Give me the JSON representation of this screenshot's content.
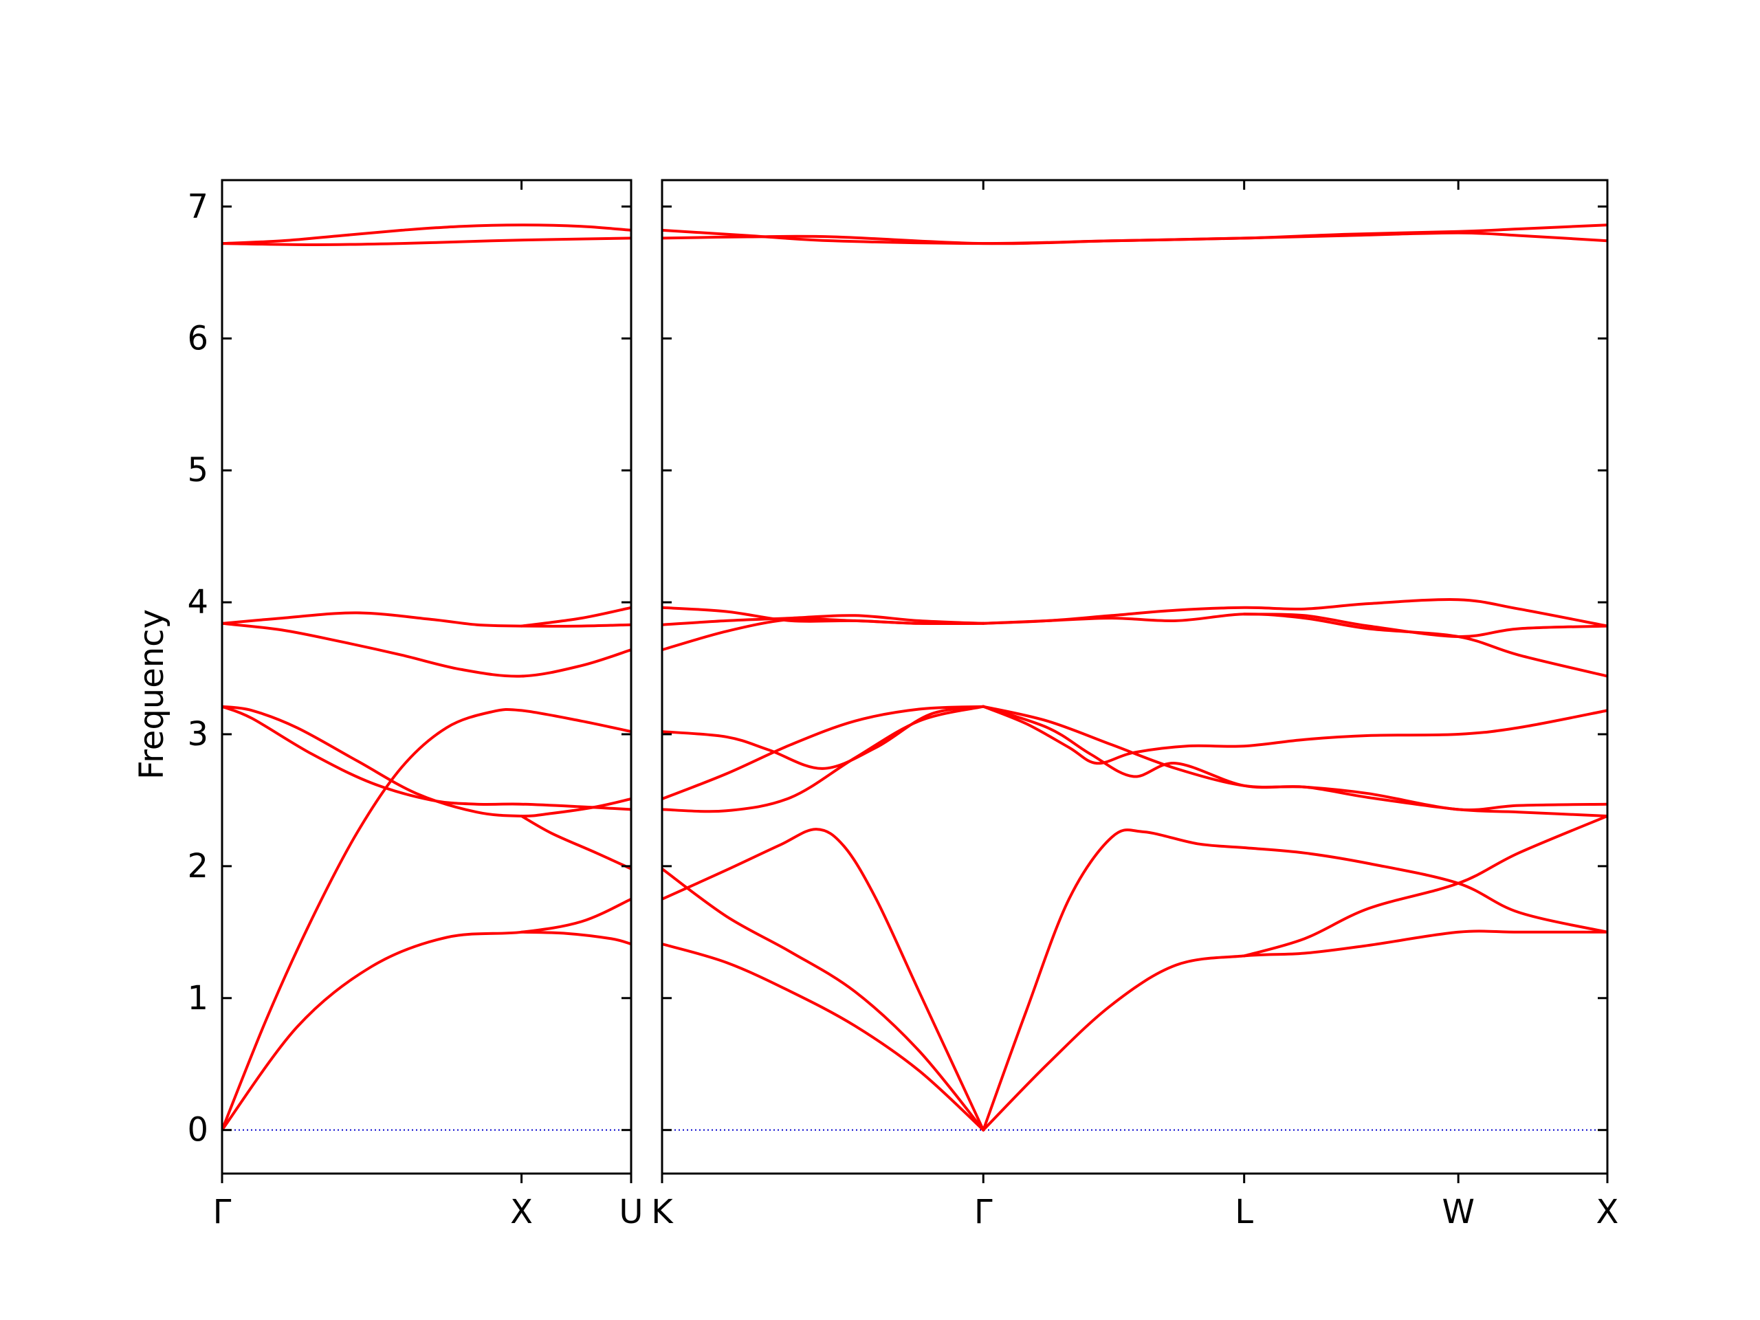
{
  "chart_data": {
    "type": "line",
    "title": "",
    "ylabel": "Frequency",
    "ylim": [
      -0.33,
      7.2
    ],
    "yticks": [
      0,
      1,
      2,
      3,
      4,
      5,
      6,
      7
    ],
    "zero_line": {
      "style": "dotted",
      "color": "#0000cc"
    },
    "band_color": "#ff0000",
    "segments": [
      {
        "name": "Γ-X-U",
        "xlim": [
          0,
          1.366
        ],
        "ticks": [
          {
            "x": 0,
            "label": "Γ"
          },
          {
            "x": 1.0,
            "label": "X"
          },
          {
            "x": 1.366,
            "label": "U"
          }
        ],
        "bands": [
          [
            [
              0,
              0
            ],
            [
              0.25,
              0.78
            ],
            [
              0.5,
              1.24
            ],
            [
              0.75,
              1.46
            ],
            [
              1.0,
              1.5
            ],
            [
              1.2,
              1.58
            ],
            [
              1.366,
              1.75
            ]
          ],
          [
            [
              0,
              0
            ],
            [
              0.15,
              0.85
            ],
            [
              0.3,
              1.6
            ],
            [
              0.45,
              2.25
            ],
            [
              0.6,
              2.75
            ],
            [
              0.75,
              3.05
            ],
            [
              0.9,
              3.17
            ],
            [
              1.0,
              3.18
            ],
            [
              1.2,
              3.1
            ],
            [
              1.366,
              3.02
            ]
          ],
          [
            [
              0,
              3.21
            ],
            [
              0.1,
              3.18
            ],
            [
              0.25,
              3.05
            ],
            [
              0.45,
              2.8
            ],
            [
              0.65,
              2.55
            ],
            [
              0.85,
              2.41
            ],
            [
              1.0,
              2.38
            ],
            [
              1.1,
              2.4
            ],
            [
              1.25,
              2.45
            ],
            [
              1.366,
              2.51
            ]
          ],
          [
            [
              0,
              3.21
            ],
            [
              0.1,
              3.12
            ],
            [
              0.3,
              2.85
            ],
            [
              0.5,
              2.63
            ],
            [
              0.7,
              2.5
            ],
            [
              0.85,
              2.47
            ],
            [
              1.0,
              2.47
            ],
            [
              1.2,
              2.45
            ],
            [
              1.366,
              2.43
            ]
          ],
          [
            [
              0,
              3.84
            ],
            [
              0.2,
              3.79
            ],
            [
              0.4,
              3.7
            ],
            [
              0.6,
              3.6
            ],
            [
              0.8,
              3.49
            ],
            [
              1.0,
              3.44
            ],
            [
              1.2,
              3.52
            ],
            [
              1.366,
              3.64
            ]
          ],
          [
            [
              0,
              3.84
            ],
            [
              0.2,
              3.88
            ],
            [
              0.45,
              3.92
            ],
            [
              0.7,
              3.87
            ],
            [
              0.85,
              3.83
            ],
            [
              1.0,
              3.82
            ],
            [
              1.2,
              3.82
            ],
            [
              1.366,
              3.83
            ]
          ],
          [
            [
              0,
              6.72
            ],
            [
              0.2,
              6.74
            ],
            [
              0.4,
              6.78
            ],
            [
              0.6,
              6.82
            ],
            [
              0.8,
              6.85
            ],
            [
              1.0,
              6.86
            ],
            [
              1.2,
              6.85
            ],
            [
              1.366,
              6.82
            ]
          ],
          [
            [
              0,
              6.72
            ],
            [
              0.3,
              6.71
            ],
            [
              0.6,
              6.72
            ],
            [
              0.9,
              6.74
            ],
            [
              1.1,
              6.75
            ],
            [
              1.366,
              6.76
            ]
          ],
          [
            [
              1.0,
              2.38
            ],
            [
              1.1,
              2.25
            ],
            [
              1.25,
              2.1
            ],
            [
              1.366,
              1.98
            ]
          ],
          [
            [
              1.0,
              1.5
            ],
            [
              1.15,
              1.49
            ],
            [
              1.3,
              1.45
            ],
            [
              1.366,
              1.41
            ]
          ],
          [
            [
              1.0,
              3.82
            ],
            [
              1.2,
              3.88
            ],
            [
              1.366,
              3.96
            ]
          ]
        ]
      },
      {
        "name": "K-Γ-L-W-X",
        "xlim": [
          0,
          4.414
        ],
        "ticks": [
          {
            "x": 0,
            "label": "K"
          },
          {
            "x": 1.5,
            "label": "Γ"
          },
          {
            "x": 2.718,
            "label": "L"
          },
          {
            "x": 3.718,
            "label": "W"
          },
          {
            "x": 4.414,
            "label": "X"
          }
        ],
        "bands": [
          [
            [
              0,
              1.41
            ],
            [
              0.3,
              1.27
            ],
            [
              0.6,
              1.05
            ],
            [
              0.9,
              0.79
            ],
            [
              1.2,
              0.45
            ],
            [
              1.5,
              0
            ]
          ],
          [
            [
              0,
              1.98
            ],
            [
              0.3,
              1.62
            ],
            [
              0.6,
              1.35
            ],
            [
              0.9,
              1.05
            ],
            [
              1.2,
              0.6
            ],
            [
              1.5,
              0
            ]
          ],
          [
            [
              0,
              1.75
            ],
            [
              0.3,
              1.97
            ],
            [
              0.55,
              2.16
            ],
            [
              0.72,
              2.28
            ],
            [
              0.85,
              2.15
            ],
            [
              1.0,
              1.75
            ],
            [
              1.2,
              1.05
            ],
            [
              1.5,
              0
            ]
          ],
          [
            [
              0,
              2.43
            ],
            [
              0.3,
              2.42
            ],
            [
              0.6,
              2.52
            ],
            [
              0.9,
              2.82
            ],
            [
              1.2,
              3.1
            ],
            [
              1.5,
              3.21
            ]
          ],
          [
            [
              0,
              2.51
            ],
            [
              0.3,
              2.7
            ],
            [
              0.6,
              2.92
            ],
            [
              0.9,
              3.1
            ],
            [
              1.2,
              3.19
            ],
            [
              1.5,
              3.21
            ]
          ],
          [
            [
              0,
              3.02
            ],
            [
              0.3,
              2.98
            ],
            [
              0.5,
              2.88
            ],
            [
              0.75,
              2.74
            ],
            [
              1.0,
              2.9
            ],
            [
              1.25,
              3.15
            ],
            [
              1.5,
              3.21
            ]
          ],
          [
            [
              0,
              3.64
            ],
            [
              0.3,
              3.78
            ],
            [
              0.6,
              3.87
            ],
            [
              0.9,
              3.86
            ],
            [
              1.2,
              3.84
            ],
            [
              1.5,
              3.84
            ]
          ],
          [
            [
              0,
              3.83
            ],
            [
              0.3,
              3.86
            ],
            [
              0.6,
              3.88
            ],
            [
              0.9,
              3.9
            ],
            [
              1.2,
              3.86
            ],
            [
              1.5,
              3.84
            ]
          ],
          [
            [
              0,
              3.96
            ],
            [
              0.3,
              3.93
            ],
            [
              0.6,
              3.86
            ],
            [
              0.9,
              3.86
            ],
            [
              1.2,
              3.84
            ],
            [
              1.5,
              3.84
            ]
          ],
          [
            [
              0,
              6.82
            ],
            [
              0.4,
              6.78
            ],
            [
              0.8,
              6.74
            ],
            [
              1.5,
              6.72
            ],
            [
              2.1,
              6.74
            ],
            [
              2.718,
              6.76
            ],
            [
              3.2,
              6.78
            ],
            [
              3.718,
              6.8
            ],
            [
              4.0,
              6.78
            ],
            [
              4.414,
              6.74
            ]
          ],
          [
            [
              0,
              6.76
            ],
            [
              0.4,
              6.77
            ],
            [
              0.8,
              6.77
            ],
            [
              1.5,
              6.72
            ],
            [
              2.1,
              6.74
            ],
            [
              2.718,
              6.76
            ],
            [
              3.2,
              6.79
            ],
            [
              3.718,
              6.81
            ],
            [
              4.0,
              6.83
            ],
            [
              4.414,
              6.86
            ]
          ],
          [
            [
              1.5,
              0
            ],
            [
              1.8,
              0.5
            ],
            [
              2.1,
              0.95
            ],
            [
              2.4,
              1.25
            ],
            [
              2.718,
              1.32
            ],
            [
              3.0,
              1.34
            ],
            [
              3.3,
              1.4
            ],
            [
              3.718,
              1.5
            ],
            [
              4.0,
              1.5
            ],
            [
              4.414,
              1.5
            ]
          ],
          [
            [
              1.5,
              0
            ],
            [
              1.7,
              0.9
            ],
            [
              1.9,
              1.75
            ],
            [
              2.1,
              2.22
            ],
            [
              2.25,
              2.26
            ],
            [
              2.5,
              2.17
            ],
            [
              2.718,
              2.14
            ],
            [
              3.0,
              2.1
            ],
            [
              3.3,
              2.02
            ],
            [
              3.718,
              1.87
            ],
            [
              4.0,
              1.65
            ],
            [
              4.414,
              1.5
            ]
          ],
          [
            [
              2.718,
              1.32
            ],
            [
              3.0,
              1.45
            ],
            [
              3.3,
              1.68
            ],
            [
              3.718,
              1.87
            ],
            [
              4.0,
              2.1
            ],
            [
              4.414,
              2.38
            ]
          ],
          [
            [
              1.5,
              3.21
            ],
            [
              1.8,
              3.05
            ],
            [
              2.0,
              2.85
            ],
            [
              2.2,
              2.68
            ],
            [
              2.4,
              2.78
            ],
            [
              2.718,
              2.61
            ],
            [
              3.0,
              2.6
            ],
            [
              3.3,
              2.52
            ],
            [
              3.718,
              2.43
            ],
            [
              4.0,
              2.41
            ],
            [
              4.414,
              2.38
            ]
          ],
          [
            [
              1.5,
              3.21
            ],
            [
              1.8,
              3.1
            ],
            [
              2.1,
              2.92
            ],
            [
              2.4,
              2.74
            ],
            [
              2.718,
              2.61
            ],
            [
              3.0,
              2.6
            ],
            [
              3.3,
              2.55
            ],
            [
              3.718,
              2.43
            ],
            [
              4.0,
              2.46
            ],
            [
              4.414,
              2.47
            ]
          ],
          [
            [
              1.5,
              3.21
            ],
            [
              1.7,
              3.08
            ],
            [
              1.9,
              2.9
            ],
            [
              2.03,
              2.78
            ],
            [
              2.2,
              2.86
            ],
            [
              2.45,
              2.91
            ],
            [
              2.718,
              2.91
            ],
            [
              3.0,
              2.96
            ],
            [
              3.3,
              2.99
            ],
            [
              3.718,
              3.0
            ],
            [
              4.0,
              3.05
            ],
            [
              4.414,
              3.18
            ]
          ],
          [
            [
              1.5,
              3.84
            ],
            [
              1.8,
              3.86
            ],
            [
              2.1,
              3.88
            ],
            [
              2.4,
              3.86
            ],
            [
              2.718,
              3.91
            ],
            [
              3.0,
              3.88
            ],
            [
              3.3,
              3.8
            ],
            [
              3.718,
              3.74
            ],
            [
              4.0,
              3.6
            ],
            [
              4.414,
              3.44
            ]
          ],
          [
            [
              1.5,
              3.84
            ],
            [
              1.8,
              3.86
            ],
            [
              2.1,
              3.9
            ],
            [
              2.4,
              3.94
            ],
            [
              2.718,
              3.96
            ],
            [
              3.0,
              3.95
            ],
            [
              3.3,
              3.99
            ],
            [
              3.718,
              4.02
            ],
            [
              4.0,
              3.95
            ],
            [
              4.414,
              3.82
            ]
          ],
          [
            [
              2.718,
              3.91
            ],
            [
              3.0,
              3.9
            ],
            [
              3.3,
              3.82
            ],
            [
              3.718,
              3.74
            ],
            [
              4.0,
              3.8
            ],
            [
              4.414,
              3.82
            ]
          ]
        ]
      }
    ]
  }
}
